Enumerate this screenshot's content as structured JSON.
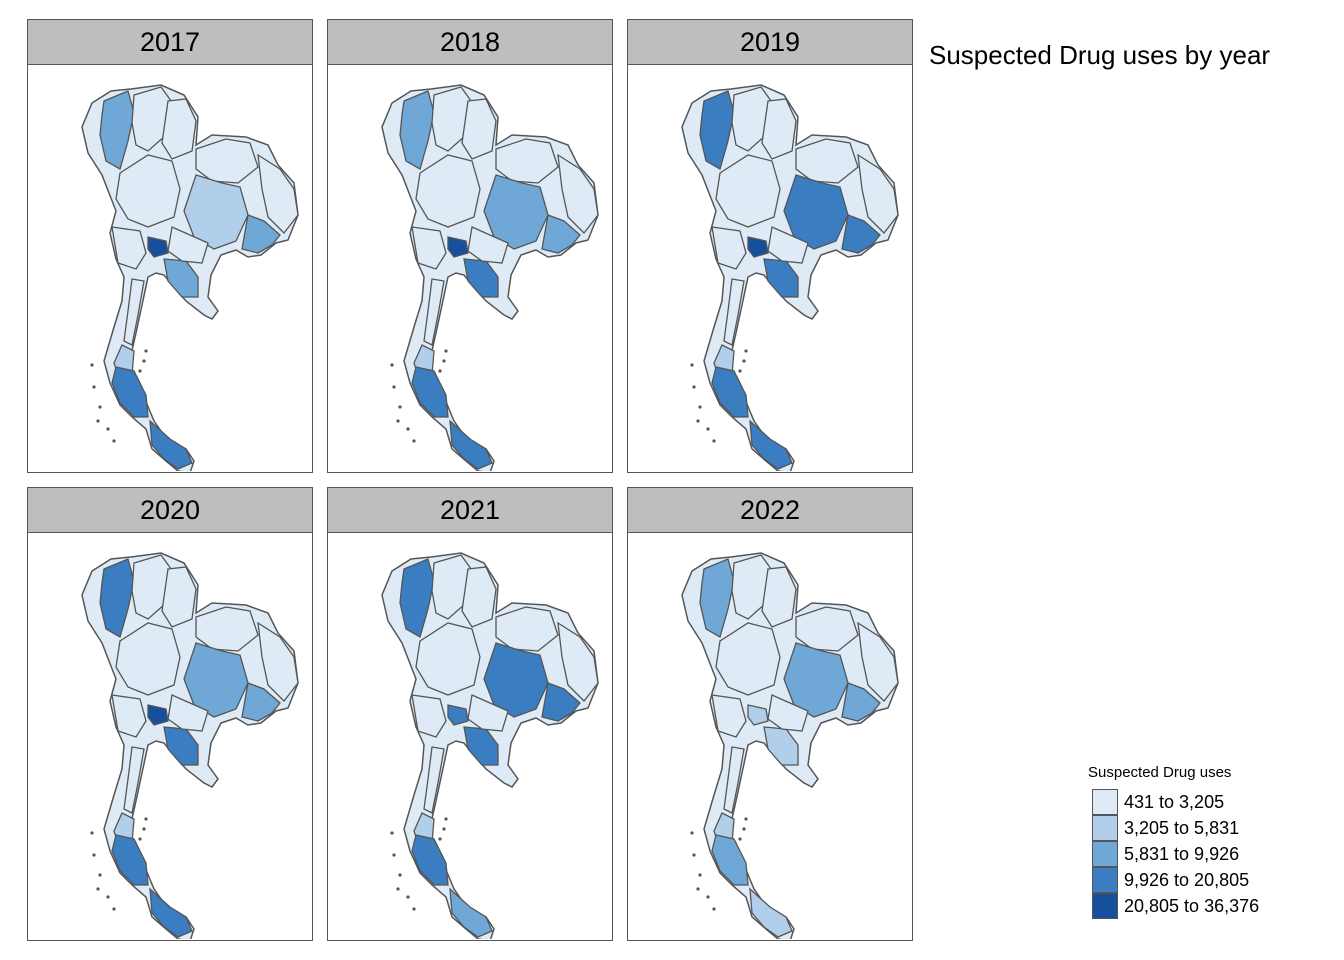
{
  "title": "Suspected Drug uses by year",
  "legend": {
    "title": "Suspected Drug uses",
    "classes": [
      {
        "label": "431 to 3,205",
        "color": "#deebf7"
      },
      {
        "label": "3,205 to 5,831",
        "color": "#b1cfea"
      },
      {
        "label": "5,831 to 9,926",
        "color": "#6fa8d6"
      },
      {
        "label": "9,926 to 20,805",
        "color": "#3a7dc0"
      },
      {
        "label": "20,805 to 36,376",
        "color": "#16509d"
      }
    ]
  },
  "border_color": "#555555",
  "panels": [
    {
      "year": "2017",
      "levels": {
        "bangkok": 4,
        "east": 2,
        "northeast": 1,
        "northeast_far": 2,
        "northwest": 2,
        "south_mid": 3,
        "south_tip": 3,
        "south_west": 1
      }
    },
    {
      "year": "2018",
      "levels": {
        "bangkok": 4,
        "east": 3,
        "northeast": 2,
        "northeast_far": 2,
        "northwest": 2,
        "south_mid": 3,
        "south_tip": 3,
        "south_west": 1
      }
    },
    {
      "year": "2019",
      "levels": {
        "bangkok": 4,
        "east": 3,
        "northeast": 3,
        "northeast_far": 3,
        "northwest": 3,
        "south_mid": 3,
        "south_tip": 3,
        "south_west": 1
      }
    },
    {
      "year": "2020",
      "levels": {
        "bangkok": 4,
        "east": 3,
        "northeast": 2,
        "northeast_far": 2,
        "northwest": 3,
        "south_mid": 3,
        "south_tip": 3,
        "south_west": 1
      }
    },
    {
      "year": "2021",
      "levels": {
        "bangkok": 3,
        "east": 3,
        "northeast": 3,
        "northeast_far": 3,
        "northwest": 3,
        "south_mid": 3,
        "south_tip": 2,
        "south_west": 1
      }
    },
    {
      "year": "2022",
      "levels": {
        "bangkok": 1,
        "east": 1,
        "northeast": 2,
        "northeast_far": 2,
        "northwest": 2,
        "south_mid": 2,
        "south_tip": 1,
        "south_west": 1
      }
    }
  ]
}
